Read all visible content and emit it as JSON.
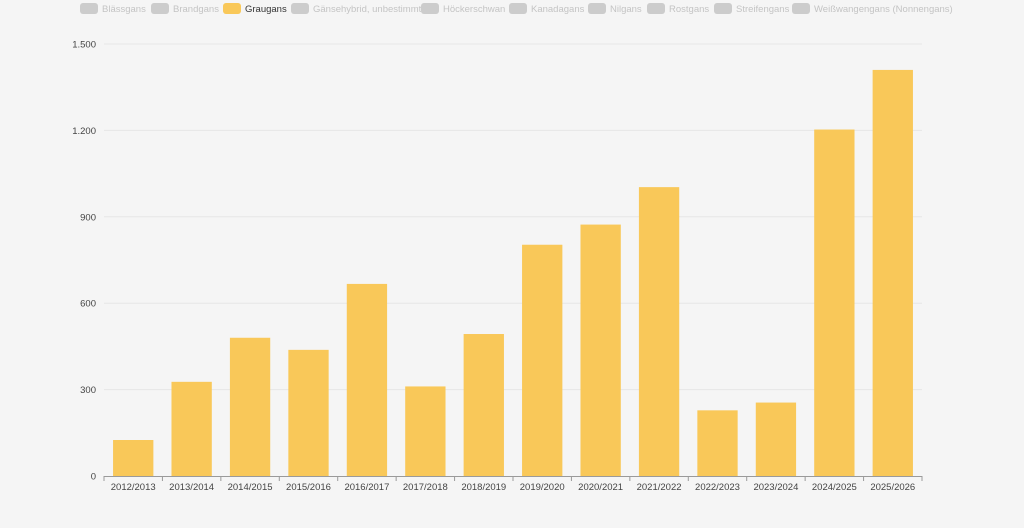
{
  "chart_data": {
    "type": "bar",
    "legend": {
      "placement": "top",
      "items": [
        {
          "name": "Blässgans",
          "active": false,
          "color": "#cccccc"
        },
        {
          "name": "Brandgans",
          "active": false,
          "color": "#cccccc"
        },
        {
          "name": "Graugans",
          "active": true,
          "color": "#f9c859"
        },
        {
          "name": "Gänsehybrid, unbestimmt",
          "active": false,
          "color": "#cccccc"
        },
        {
          "name": "Höckerschwan",
          "active": false,
          "color": "#cccccc"
        },
        {
          "name": "Kanadagans",
          "active": false,
          "color": "#cccccc"
        },
        {
          "name": "Nilgans",
          "active": false,
          "color": "#cccccc"
        },
        {
          "name": "Rostgans",
          "active": false,
          "color": "#cccccc"
        },
        {
          "name": "Streifengans",
          "active": false,
          "color": "#cccccc"
        },
        {
          "name": "Weißwangengans (Nonnengans)",
          "active": false,
          "color": "#cccccc"
        }
      ]
    },
    "categories": [
      "2012/2013",
      "2013/2014",
      "2014/2015",
      "2015/2016",
      "2016/2017",
      "2017/2018",
      "2018/2019",
      "2019/2020",
      "2020/2021",
      "2021/2022",
      "2022/2023",
      "2023/2024",
      "2024/2025",
      "2025/2026"
    ],
    "series": [
      {
        "name": "Graugans",
        "color": "#f9c859",
        "values": [
          125,
          327,
          480,
          438,
          667,
          311,
          493,
          803,
          873,
          1003,
          228,
          255,
          1203,
          1410
        ]
      }
    ],
    "ylim": [
      0,
      1500
    ],
    "yticks": [
      0,
      300,
      600,
      900,
      1200,
      1500
    ],
    "ytick_labels": [
      "0",
      "300",
      "600",
      "900",
      "1.200",
      "1.500"
    ],
    "grid": true
  }
}
